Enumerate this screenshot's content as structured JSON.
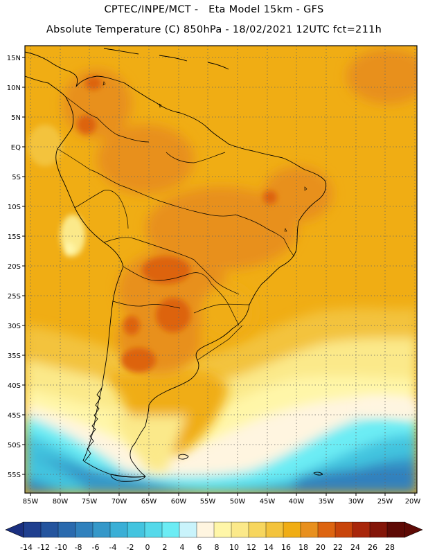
{
  "header": {
    "line1": "CPTEC/INPE/MCT -   Eta Model 15km - GFS",
    "line2": "Absolute Temperature (C) 850hPa - 18/02/2021 12UTC fct=211h"
  },
  "axes": {
    "lat_ticks": [
      "15N",
      "10N",
      "5N",
      "EQ",
      "5S",
      "10S",
      "15S",
      "20S",
      "25S",
      "30S",
      "35S",
      "40S",
      "45S",
      "50S",
      "55S"
    ],
    "lon_ticks": [
      "85W",
      "80W",
      "75W",
      "70W",
      "65W",
      "60W",
      "55W",
      "50W",
      "45W",
      "40W",
      "35W",
      "30W",
      "25W",
      "20W"
    ]
  },
  "colorbar": {
    "levels": [
      "-14",
      "-12",
      "-10",
      "-8",
      "-6",
      "-4",
      "-2",
      "0",
      "2",
      "4",
      "6",
      "8",
      "10",
      "12",
      "14",
      "16",
      "18",
      "20",
      "22",
      "24",
      "26",
      "28"
    ],
    "colors": [
      "#1f3f8f",
      "#24549e",
      "#2a6aae",
      "#3081bd",
      "#3598c9",
      "#3aafd6",
      "#43c4df",
      "#55d9ea",
      "#6cecf4",
      "#c9f3fb",
      "#fff5e0",
      "#fff6a8",
      "#fbe98a",
      "#f7d65e",
      "#f3c33c",
      "#f0ad14",
      "#e8901e",
      "#dd6410",
      "#c8440a",
      "#a8260a",
      "#831508",
      "#5e0a05"
    ]
  }
}
